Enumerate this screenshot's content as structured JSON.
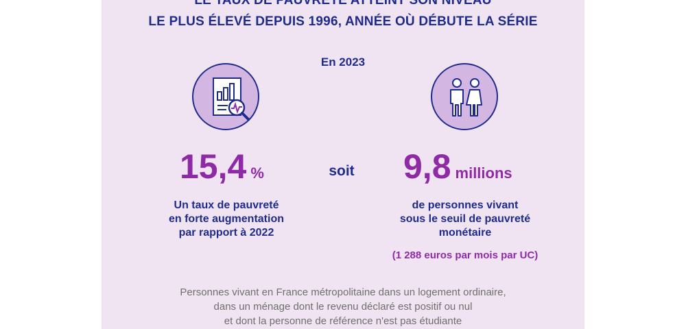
{
  "title": {
    "line1": "LE TAUX DE PAUVRETÉ ATTEINT SON NIVEAU",
    "line2": "LE PLUS ÉLEVÉ DEPUIS 1996, ANNÉE OÙ DÉBUTE LA SÉRIE"
  },
  "year_label": "En 2023",
  "icons": {
    "left": "chart-magnifier-icon",
    "right": "people-icon"
  },
  "stat_left": {
    "value": "15,4",
    "unit": "%",
    "description": [
      "Un taux de pauvreté",
      "en forte augmentation",
      "par rapport à 2022"
    ]
  },
  "connector": "soit",
  "stat_right": {
    "value": "9,8",
    "unit": "millions",
    "description": [
      "de personnes vivant",
      "sous le seuil de pauvreté",
      "monétaire"
    ],
    "threshold": "(1 288 euros par mois par UC)"
  },
  "footnote": [
    "Personnes vivant en France métropolitaine dans un logement ordinaire,",
    "dans un ménage dont le revenu déclaré est positif ou nul",
    "et dont la personne de référence n'est pas étudiante"
  ],
  "colors": {
    "background": "#f1e4f2",
    "navy": "#1e2b8a",
    "purple": "#8f2aa6",
    "icon_fill": "#d4b6e2",
    "footnote_gray": "#6e6e6e"
  }
}
